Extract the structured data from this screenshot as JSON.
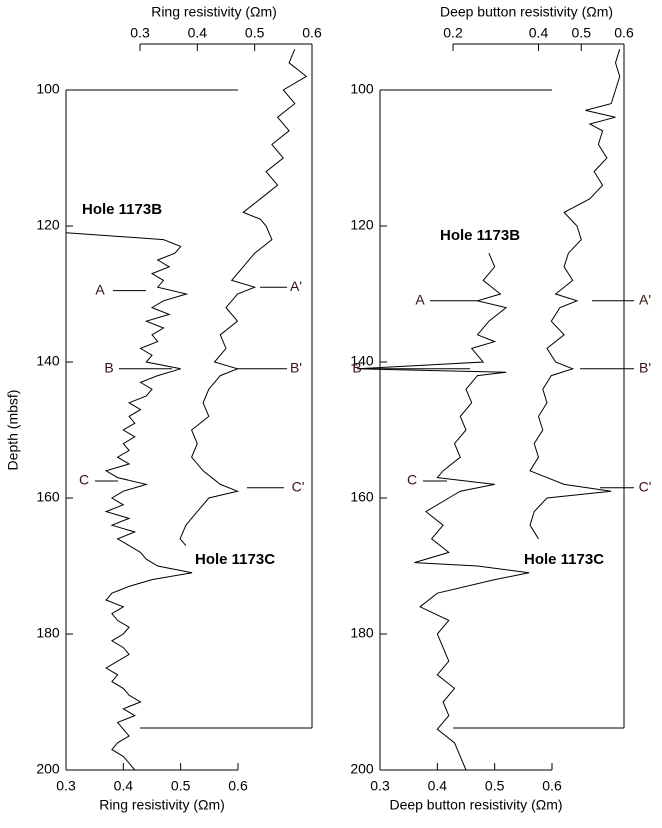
{
  "chart_data": [
    {
      "type": "line",
      "xlabel": "Ring resistivity (Ωm)",
      "x2label": "Ring resistivity (Ωm)",
      "ylabel": "Depth (mbsf)",
      "xlim": [
        0.3,
        0.6
      ],
      "xticks": [
        0.3,
        0.4,
        0.5,
        0.6
      ],
      "x2lim": [
        0.3,
        0.6
      ],
      "x2ticks": [
        0.3,
        0.4,
        0.5,
        0.6
      ],
      "ylim": [
        100,
        200
      ],
      "yticks": [
        100,
        120,
        140,
        160,
        180,
        200
      ],
      "y_reversed": true,
      "series": [
        {
          "name": "Hole 1173B",
          "color": "#000000",
          "depth": [
            121,
            122,
            123,
            124,
            125,
            126,
            127,
            128,
            129,
            130,
            131,
            132,
            133,
            134,
            135,
            136,
            137,
            138,
            139,
            140,
            141,
            142,
            143,
            144,
            145,
            146,
            147,
            148,
            149,
            150,
            151,
            152,
            153,
            154,
            155,
            156,
            157,
            158,
            159,
            160,
            161,
            162,
            163,
            164,
            165,
            166,
            167,
            168,
            169,
            170,
            171,
            172,
            173,
            174,
            175,
            176,
            177,
            178,
            179,
            180,
            181,
            182,
            183,
            184,
            185,
            186,
            187,
            188,
            189,
            190,
            191,
            192,
            193,
            194,
            195,
            196,
            197,
            198,
            199,
            200
          ],
          "values": [
            0.3,
            0.47,
            0.5,
            0.49,
            0.46,
            0.48,
            0.45,
            0.47,
            0.46,
            0.51,
            0.47,
            0.45,
            0.48,
            0.44,
            0.47,
            0.45,
            0.46,
            0.43,
            0.45,
            0.44,
            0.5,
            0.46,
            0.43,
            0.45,
            0.44,
            0.41,
            0.43,
            0.41,
            0.42,
            0.4,
            0.42,
            0.4,
            0.41,
            0.39,
            0.41,
            0.37,
            0.39,
            0.44,
            0.4,
            0.38,
            0.4,
            0.37,
            0.41,
            0.38,
            0.42,
            0.39,
            0.41,
            0.43,
            0.44,
            0.46,
            0.52,
            0.45,
            0.41,
            0.38,
            0.37,
            0.4,
            0.38,
            0.39,
            0.41,
            0.4,
            0.38,
            0.4,
            0.41,
            0.39,
            0.37,
            0.39,
            0.38,
            0.4,
            0.41,
            0.43,
            0.4,
            0.42,
            0.39,
            0.4,
            0.41,
            0.39,
            0.38,
            0.4,
            0.41,
            0.42
          ]
        },
        {
          "name": "Hole 1173C",
          "color": "#000000",
          "axis": "x2",
          "depth": [
            94,
            96,
            98,
            100,
            102,
            104,
            106,
            108,
            110,
            112,
            114,
            116,
            118,
            119,
            120,
            122,
            124,
            126,
            128,
            129,
            130,
            132,
            134,
            136,
            138,
            140,
            141,
            142,
            144,
            146,
            148,
            150,
            152,
            154,
            156,
            158,
            159,
            160,
            162,
            164,
            166,
            167
          ],
          "values": [
            0.57,
            0.56,
            0.59,
            0.55,
            0.57,
            0.54,
            0.56,
            0.53,
            0.55,
            0.52,
            0.54,
            0.51,
            0.48,
            0.51,
            0.52,
            0.53,
            0.5,
            0.48,
            0.46,
            0.5,
            0.47,
            0.45,
            0.47,
            0.44,
            0.45,
            0.43,
            0.47,
            0.44,
            0.42,
            0.41,
            0.42,
            0.39,
            0.4,
            0.39,
            0.41,
            0.44,
            0.47,
            0.42,
            0.4,
            0.38,
            0.37,
            0.38
          ]
        }
      ],
      "annotations": [
        {
          "text": "A",
          "depth": 129.5
        },
        {
          "text": "B",
          "depth": 141
        },
        {
          "text": "C",
          "depth": 157.5
        },
        {
          "text": "A'",
          "depth": 129
        },
        {
          "text": "B'",
          "depth": 141
        },
        {
          "text": "C'",
          "depth": 158.5
        }
      ]
    },
    {
      "type": "line",
      "xlabel": "Deep button resistivity (Ωm)",
      "x2label": "Deep button resistivity (Ωm)",
      "xlim": [
        0.3,
        0.6
      ],
      "xticks": [
        0.3,
        0.4,
        0.5,
        0.6
      ],
      "x2lim": [
        0.2,
        0.6
      ],
      "x2ticks": [
        0.2,
        0.4,
        0.5,
        0.6
      ],
      "ylim": [
        100,
        200
      ],
      "yticks": [
        100,
        120,
        140,
        160,
        180,
        200
      ],
      "y_reversed": true,
      "series": [
        {
          "name": "Hole 1173B",
          "color": "#000000",
          "depth": [
            124,
            126,
            128,
            130,
            131,
            132,
            134,
            136,
            137,
            138,
            140,
            141,
            141.5,
            142,
            144,
            146,
            148,
            150,
            152,
            154,
            156,
            157,
            158,
            159,
            160,
            162,
            164,
            166,
            168,
            169.5,
            170,
            171,
            172,
            174,
            176,
            178,
            180,
            182,
            184,
            186,
            188,
            190,
            192,
            194,
            196,
            198,
            200
          ],
          "values": [
            0.49,
            0.5,
            0.48,
            0.51,
            0.47,
            0.52,
            0.49,
            0.47,
            0.5,
            0.46,
            0.48,
            0.26,
            0.52,
            0.47,
            0.45,
            0.46,
            0.44,
            0.45,
            0.43,
            0.44,
            0.41,
            0.4,
            0.5,
            0.44,
            0.42,
            0.38,
            0.41,
            0.39,
            0.42,
            0.36,
            0.47,
            0.56,
            0.5,
            0.4,
            0.37,
            0.42,
            0.4,
            0.41,
            0.42,
            0.4,
            0.43,
            0.41,
            0.42,
            0.4,
            0.43,
            0.44,
            0.45
          ]
        },
        {
          "name": "Hole 1173C",
          "color": "#000000",
          "axis": "x2",
          "depth": [
            94,
            96,
            98,
            100,
            102,
            103,
            104,
            105,
            106,
            108,
            110,
            112,
            114,
            116,
            118,
            120,
            122,
            124,
            126,
            128,
            130,
            131,
            132,
            134,
            136,
            138,
            140,
            141,
            142,
            144,
            146,
            148,
            150,
            152,
            154,
            156,
            158,
            159,
            160,
            162,
            164,
            166
          ],
          "values": [
            0.59,
            0.58,
            0.59,
            0.58,
            0.57,
            0.51,
            0.58,
            0.52,
            0.55,
            0.54,
            0.56,
            0.53,
            0.55,
            0.52,
            0.46,
            0.49,
            0.5,
            0.47,
            0.46,
            0.48,
            0.44,
            0.49,
            0.45,
            0.43,
            0.46,
            0.42,
            0.44,
            0.48,
            0.43,
            0.41,
            0.42,
            0.4,
            0.41,
            0.39,
            0.4,
            0.38,
            0.46,
            0.57,
            0.42,
            0.39,
            0.38,
            0.4
          ]
        }
      ],
      "annotations": [
        {
          "text": "A",
          "depth": 131
        },
        {
          "text": "B",
          "depth": 141
        },
        {
          "text": "C",
          "depth": 157.5
        },
        {
          "text": "A'",
          "depth": 131
        },
        {
          "text": "B'",
          "depth": 141
        },
        {
          "text": "C'",
          "depth": 158.5
        }
      ]
    }
  ]
}
